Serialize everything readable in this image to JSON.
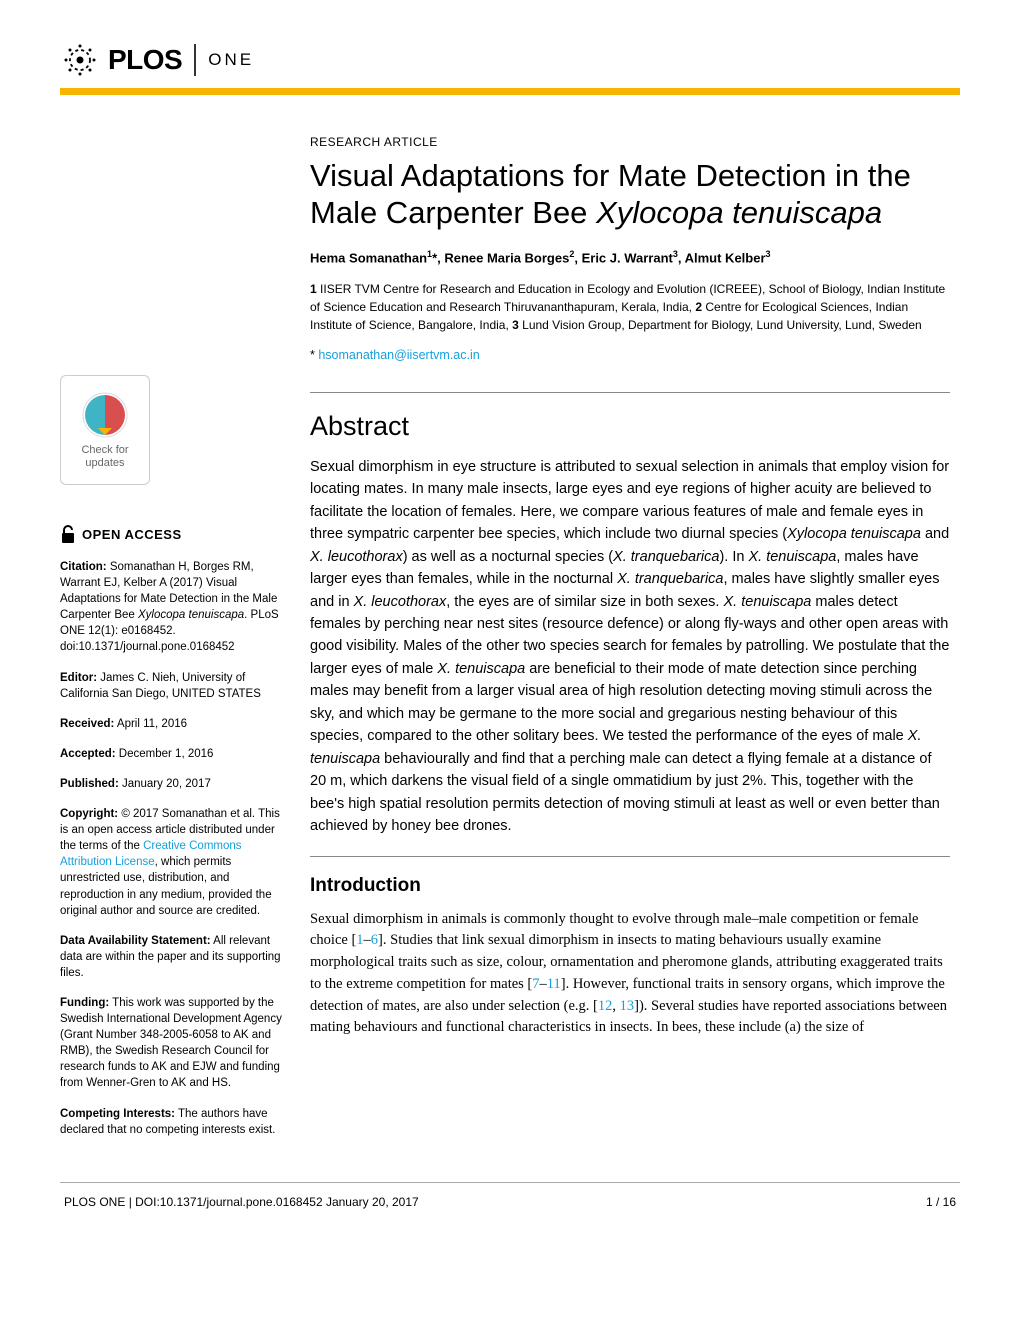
{
  "colors": {
    "accent": "#f7b500",
    "link": "#16a0db",
    "badge_top": "#d94f4f",
    "badge_bottom": "#3fb4c5"
  },
  "header": {
    "brand_main": "PLOS",
    "brand_sub": "ONE"
  },
  "article": {
    "type": "RESEARCH ARTICLE",
    "title_plain": "Visual Adaptations for Mate Detection in the Male Carpenter Bee ",
    "title_italic": "Xylocopa tenuiscapa",
    "authors_html": "Hema Somanathan<sup>1</sup>*, Renee Maria Borges<sup>2</sup>, Eric J. Warrant<sup>3</sup>, Almut Kelber<sup>3</sup>",
    "affiliations": "1 IISER TVM Centre for Research and Education in Ecology and Evolution (ICREEE), School of Biology, Indian Institute of Science Education and Research Thiruvananthapuram, Kerala, India, 2 Centre for Ecological Sciences, Indian Institute of Science, Bangalore, India, 3 Lund Vision Group, Department for Biology, Lund University, Lund, Sweden",
    "corresponding_prefix": "* ",
    "corresponding_email": "hsomanathan@iisertvm.ac.in"
  },
  "abstract": {
    "heading": "Abstract",
    "text": "Sexual dimorphism in eye structure is attributed to sexual selection in animals that employ vision for locating mates. In many male insects, large eyes and eye regions of higher acuity are believed to facilitate the location of females. Here, we compare various features of male and female eyes in three sympatric carpenter bee species, which include two diurnal species (Xylocopa tenuiscapa and X. leucothorax) as well as a nocturnal species (X. tranquebarica). In X. tenuiscapa, males have larger eyes than females, while in the nocturnal X. tranquebarica, males have slightly smaller eyes and in X. leucothorax, the eyes are of similar size in both sexes. X. tenuiscapa males detect females by perching near nest sites (resource defence) or along fly-ways and other open areas with good visibility. Males of the other two species search for females by patrolling. We postulate that the larger eyes of male X. tenuiscapa are beneficial to their mode of mate detection since perching males may benefit from a larger visual area of high resolution detecting moving stimuli across the sky, and which may be germane to the more social and gregarious nesting behaviour of this species, compared to the other solitary bees. We tested the performance of the eyes of male X. tenuiscapa behaviourally and find that a perching male can detect a flying female at a distance of 20 m, which darkens the visual field of a single ommatidium by just 2%. This, together with the bee's high spatial resolution permits detection of moving stimuli at least as well or even better than achieved by honey bee drones."
  },
  "intro": {
    "heading": "Introduction",
    "text_parts": [
      "Sexual dimorphism in animals is commonly thought to evolve through male–male competition or female choice [",
      "1",
      "–",
      "6",
      "]. Studies that link sexual dimorphism in insects to mating behaviours usually examine morphological traits such as size, colour, ornamentation and pheromone glands, attributing exaggerated traits to the extreme competition for mates [",
      "7",
      "–",
      "11",
      "]. However, functional traits in sensory organs, which improve the detection of mates, are also under selection (e.g. [",
      "12",
      ", ",
      "13",
      "]). Several studies have reported associations between mating behaviours and functional characteristics in insects. In bees, these include (a) the size of"
    ]
  },
  "sidebar": {
    "updates_line1": "Check for",
    "updates_line2": "updates",
    "open_access": "OPEN ACCESS",
    "citation_label": "Citation:",
    "citation_text": " Somanathan H, Borges RM, Warrant EJ, Kelber A (2017) Visual Adaptations for Mate Detection in the Male Carpenter Bee ",
    "citation_italic": "Xylocopa tenuiscapa",
    "citation_tail": ". PLoS ONE 12(1): e0168452. doi:10.1371/journal.pone.0168452",
    "editor_label": "Editor:",
    "editor_text": " James C. Nieh, University of California San Diego, UNITED STATES",
    "received_label": "Received:",
    "received_text": " April 11, 2016",
    "accepted_label": "Accepted:",
    "accepted_text": " December 1, 2016",
    "published_label": "Published:",
    "published_text": " January 20, 2017",
    "copyright_label": "Copyright:",
    "copyright_text1": " © 2017 Somanathan et al. This is an open access article distributed under the terms of the ",
    "copyright_link": "Creative Commons Attribution License",
    "copyright_text2": ", which permits unrestricted use, distribution, and reproduction in any medium, provided the original author and source are credited.",
    "data_label": "Data Availability Statement:",
    "data_text": " All relevant data are within the paper and its supporting files.",
    "funding_label": "Funding:",
    "funding_text": " This work was supported by the Swedish International Development Agency (Grant Number 348-2005-6058 to AK and RMB), the Swedish Research Council for research funds to AK and EJW and funding from Wenner-Gren to AK and HS.",
    "competing_label": "Competing Interests:",
    "competing_text": " The authors have declared that no competing interests exist."
  },
  "footer": {
    "left": "PLOS ONE | DOI:10.1371/journal.pone.0168452    January 20, 2017",
    "right": "1 / 16"
  }
}
